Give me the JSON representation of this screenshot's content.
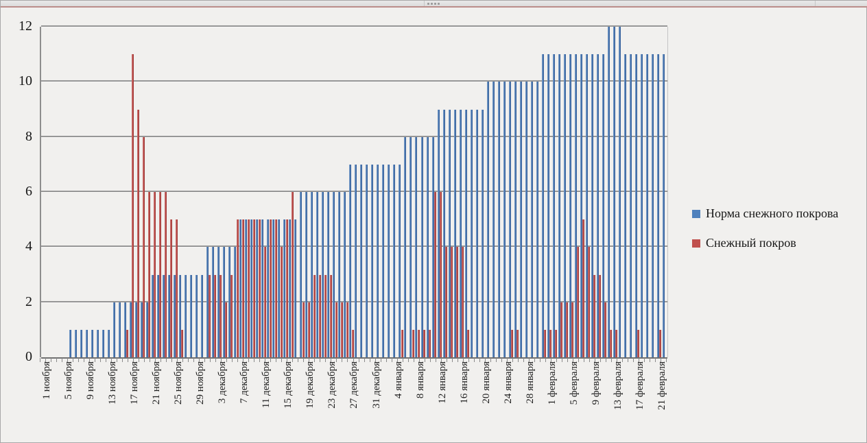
{
  "top_bar": {
    "grip_icon": "grip-dots"
  },
  "chart_data": {
    "type": "bar",
    "title": "",
    "xlabel": "",
    "ylabel": "",
    "ylim": [
      0,
      12
    ],
    "ytick_step": 2,
    "y_tick_labels": [
      "0",
      "2",
      "4",
      "6",
      "8",
      "10",
      "12"
    ],
    "grid": true,
    "legend_position": "right",
    "x_label_every": 4,
    "x_tick_labels": [
      "1 ноября",
      "5 ноября",
      "9 ноября",
      "13 ноября",
      "17 ноября",
      "21 ноября",
      "25 ноября",
      "29 ноября",
      "3 декабря",
      "7 декабря",
      "11 декабря",
      "15 декабря",
      "19 декабря",
      "23 декабря",
      "27 декабря",
      "31 декабря",
      "4 января",
      "8 января",
      "12 января",
      "16 января",
      "20 января",
      "24 января",
      "28 января",
      "1 февраля",
      "5 февраля",
      "9 февраля",
      "13 февраля",
      "17 февраля",
      "21 февраля"
    ],
    "x_range_note": "daily values, 1 ноября … 22 февраля (114 days)",
    "series": [
      {
        "name": "Норма снежного покрова",
        "color": "#4F81BD",
        "values": [
          0,
          0,
          0,
          0,
          0,
          1,
          1,
          1,
          1,
          1,
          1,
          1,
          1,
          2,
          2,
          2,
          2,
          2,
          2,
          2,
          3,
          3,
          3,
          3,
          3,
          3,
          3,
          3,
          3,
          3,
          4,
          4,
          4,
          4,
          4,
          4,
          5,
          5,
          5,
          5,
          5,
          5,
          5,
          5,
          5,
          5,
          5,
          6,
          6,
          6,
          6,
          6,
          6,
          6,
          6,
          6,
          7,
          7,
          7,
          7,
          7,
          7,
          7,
          7,
          7,
          7,
          8,
          8,
          8,
          8,
          8,
          8,
          9,
          9,
          9,
          9,
          9,
          9,
          9,
          9,
          9,
          10,
          10,
          10,
          10,
          10,
          10,
          10,
          10,
          10,
          10,
          11,
          11,
          11,
          11,
          11,
          11,
          11,
          11,
          11,
          11,
          11,
          11,
          12,
          12,
          12,
          11,
          11,
          11,
          11,
          11,
          11,
          11,
          11
        ]
      },
      {
        "name": "Снежный покров",
        "color": "#C0504D",
        "values": [
          0,
          0,
          0,
          0,
          0,
          0,
          0,
          0,
          0,
          0,
          0,
          0,
          0,
          0,
          0,
          1,
          11,
          9,
          8,
          6,
          6,
          6,
          6,
          5,
          5,
          1,
          0,
          0,
          0,
          0,
          3,
          3,
          3,
          2,
          3,
          5,
          5,
          5,
          5,
          5,
          4,
          5,
          5,
          4,
          5,
          6,
          0,
          2,
          2,
          3,
          3,
          3,
          3,
          2,
          2,
          2,
          1,
          0,
          0,
          0,
          0,
          0,
          0,
          0,
          0,
          1,
          0,
          1,
          1,
          1,
          1,
          6,
          6,
          4,
          4,
          4,
          4,
          1,
          0,
          0,
          0,
          0,
          0,
          0,
          0,
          1,
          1,
          0,
          0,
          0,
          0,
          1,
          1,
          1,
          2,
          2,
          2,
          4,
          5,
          4,
          3,
          3,
          2,
          1,
          1,
          0,
          0,
          0,
          1,
          0,
          0,
          0,
          1,
          0
        ]
      }
    ]
  }
}
